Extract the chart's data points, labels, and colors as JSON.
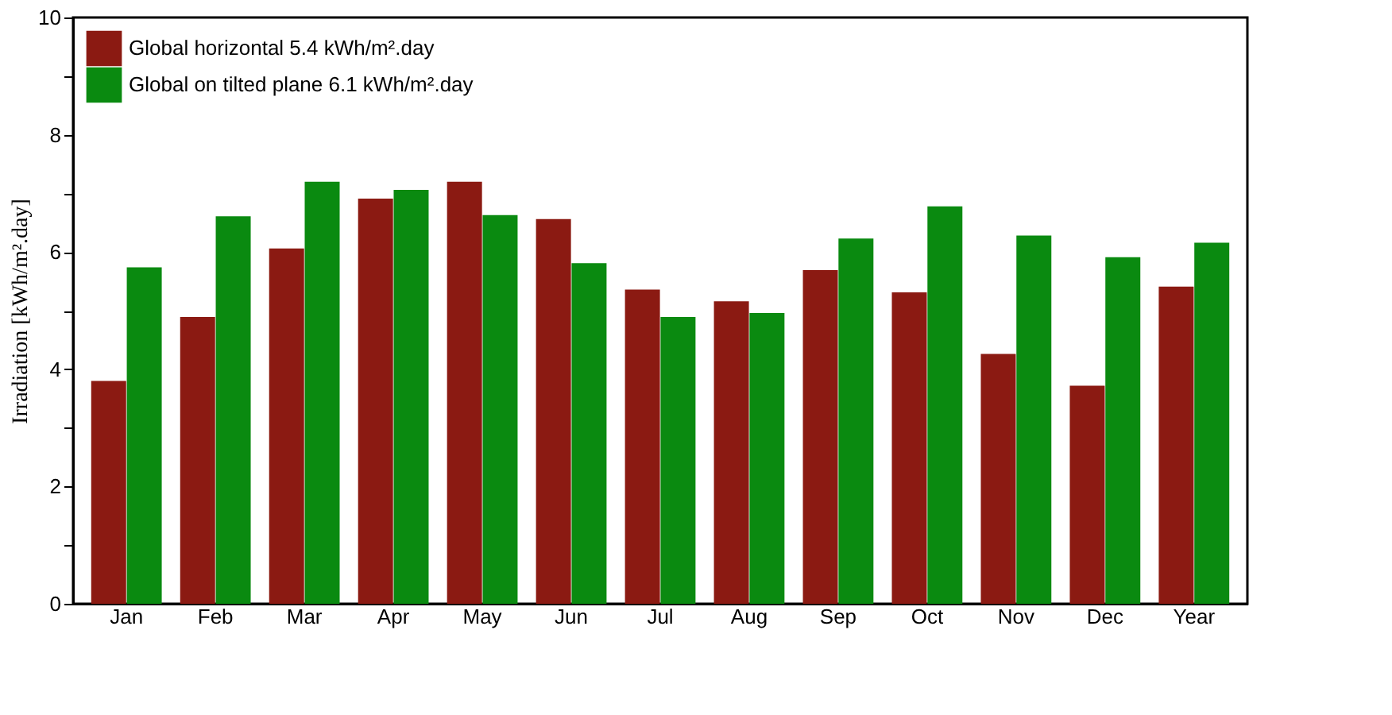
{
  "chart_data": {
    "type": "bar",
    "ylabel": "Irradiation [kWh/m².day]",
    "categories": [
      "Jan",
      "Feb",
      "Mar",
      "Apr",
      "May",
      "Jun",
      "Jul",
      "Aug",
      "Sep",
      "Oct",
      "Nov",
      "Dec",
      "Year"
    ],
    "series": [
      {
        "name": "Global horizontal   5.4 kWh/m².day",
        "color": "#8b1a12",
        "values": [
          3.8,
          4.89,
          6.06,
          6.91,
          7.2,
          6.56,
          5.36,
          5.16,
          5.69,
          5.31,
          4.26,
          3.72,
          5.41
        ]
      },
      {
        "name": "Global on tilted plane   6.1 kWh/m².day",
        "color": "#0a8a10",
        "values": [
          5.74,
          6.61,
          7.2,
          7.06,
          6.63,
          5.81,
          4.89,
          4.96,
          6.23,
          6.78,
          6.28,
          5.91,
          6.16
        ]
      }
    ],
    "ylim": [
      0,
      10
    ],
    "yticks": [
      0,
      {
        "value": 1,
        "label": null
      },
      2,
      {
        "value": 3,
        "label": null
      },
      4,
      {
        "value": 5,
        "label": null
      },
      6,
      {
        "value": 7,
        "label": null
      },
      8,
      {
        "value": 9,
        "label": null
      },
      10
    ],
    "grid": false,
    "legend": "top left"
  }
}
